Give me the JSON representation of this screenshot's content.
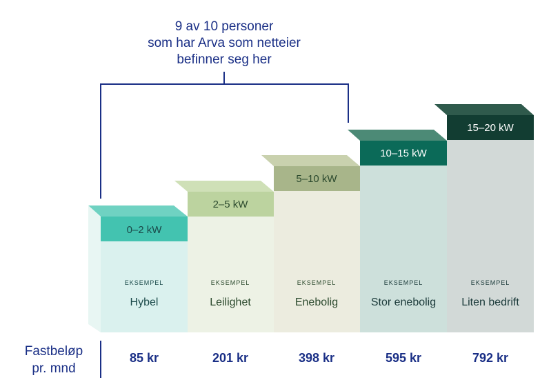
{
  "annotation": {
    "line1": "9 av 10 personer",
    "line2": "som har Arva som netteier",
    "line3": "befinner seg her"
  },
  "steps": [
    {
      "range": "0–2 kW",
      "example": "EKSEMPEL",
      "category": "Hybel",
      "price": "85 kr",
      "colors": {
        "front": "#43c3b0",
        "top": "#6fd2c2",
        "side": "#6fd2c2",
        "body": "#daf1ee",
        "text": "#1b4a4a",
        "cat": "#1b4a4a"
      }
    },
    {
      "range": "2–5 kW",
      "example": "EKSEMPEL",
      "category": "Leilighet",
      "price": "201 kr",
      "colors": {
        "front": "#bcd39f",
        "top": "#cfe0b7",
        "side": "#cfe0b7",
        "body": "#edf2e5",
        "text": "#2c4a2e",
        "cat": "#2c4a2e"
      }
    },
    {
      "range": "5–10 kW",
      "example": "EKSEMPEL",
      "category": "Enebolig",
      "price": "398 kr",
      "colors": {
        "front": "#a8b58a",
        "top": "#c9d1ae",
        "side": "#c9d1ae",
        "body": "#ececdf",
        "text": "#2c4a2e",
        "cat": "#2c4a2e"
      }
    },
    {
      "range": "10–15 kW",
      "example": "EKSEMPEL",
      "category": "Stor enebolig",
      "price": "595 kr",
      "colors": {
        "front": "#0b6a58",
        "top": "#4c8a76",
        "side": "#4c8a76",
        "body": "#cde0db",
        "text": "#ffffff",
        "cat": "#1b3a3a"
      }
    },
    {
      "range": "15–20 kW",
      "example": "EKSEMPEL",
      "category": "Liten bedrift",
      "price": "792 kr",
      "colors": {
        "front": "#123d32",
        "top": "#2f5a4c",
        "side": "#2f5a4c",
        "body": "#d2d9d7",
        "text": "#ffffff",
        "cat": "#1b3a3a"
      }
    }
  ],
  "price_label": {
    "line1": "Fastbeløp",
    "line2": "pr. mnd"
  },
  "accent_color": "#1a2f86"
}
